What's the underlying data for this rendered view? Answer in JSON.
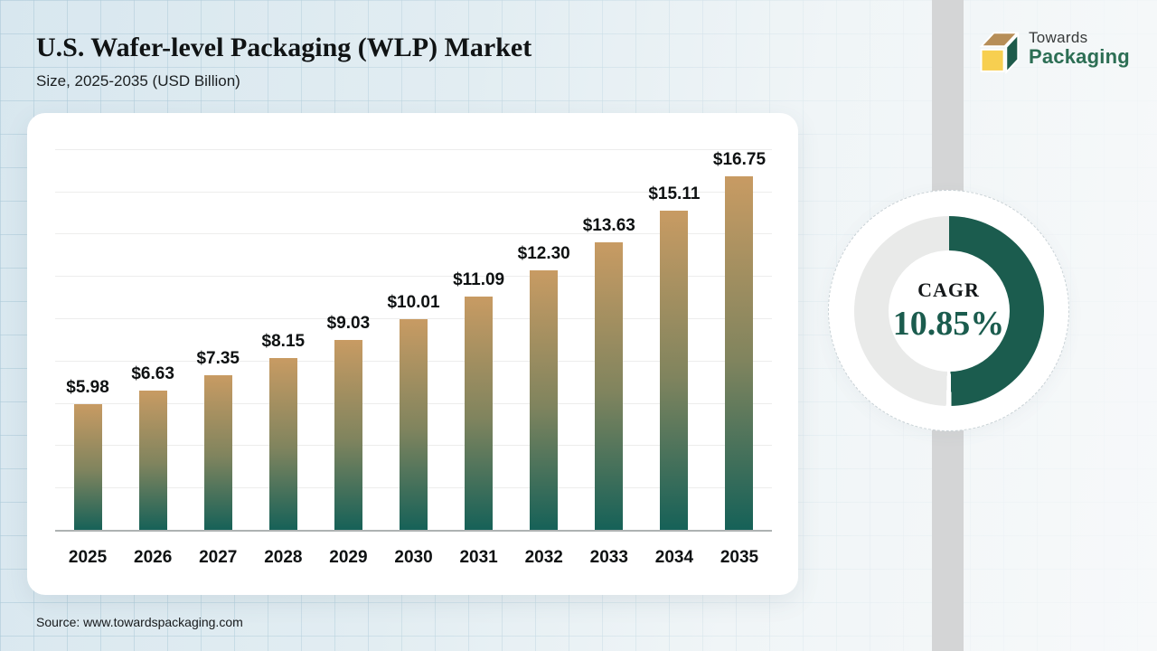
{
  "page": {
    "title": "U.S. Wafer-level Packaging (WLP) Market",
    "subtitle": "Size, 2025-2035 (USD Billion)",
    "source": "Source: www.towardspackaging.com"
  },
  "logo": {
    "line1": "Towards",
    "line2": "Packaging",
    "colors": {
      "cube_top": "#b78e58",
      "cube_front": "#f7cf50",
      "cube_side": "#1e5b4b",
      "wordmark_green": "#2c6e54"
    }
  },
  "chart_data": {
    "type": "bar",
    "title": "U.S. Wafer-level Packaging (WLP) Market",
    "subtitle": "Size, 2025-2035 (USD Billion)",
    "unit": "USD Billion",
    "categories": [
      "2025",
      "2026",
      "2027",
      "2028",
      "2029",
      "2030",
      "2031",
      "2032",
      "2033",
      "2034",
      "2035"
    ],
    "values": [
      5.98,
      6.63,
      7.35,
      8.15,
      9.03,
      10.01,
      11.09,
      12.3,
      13.63,
      15.11,
      16.75
    ],
    "value_labels": [
      "$5.98",
      "$6.63",
      "$7.35",
      "$8.15",
      "$9.03",
      "$10.01",
      "$11.09",
      "$12.30",
      "$13.63",
      "$15.11",
      "$16.75"
    ],
    "ylim": [
      0,
      18
    ],
    "gridline_step": 2,
    "grid": true,
    "legend": "none",
    "bar_gradient_top": "#c89b63",
    "bar_gradient_mid": "#80845e",
    "bar_gradient_bottom": "#156158"
  },
  "cagr": {
    "label": "CAGR",
    "value": "10.85%",
    "percent": 49.6,
    "arc_color": "#1b5c4e",
    "rest_color": "#e9eae9"
  }
}
